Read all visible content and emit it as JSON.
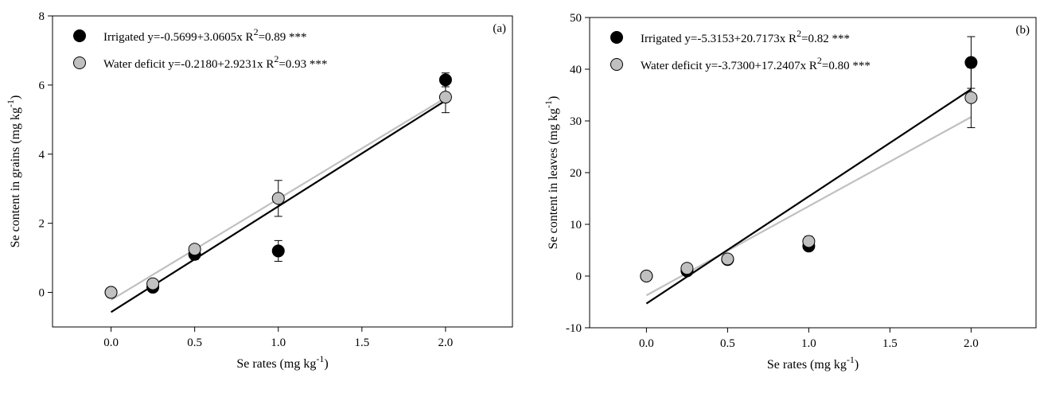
{
  "chart_data": [
    {
      "type": "scatter",
      "panel_label": "(a)",
      "xlabel": "Se rates (mg kg",
      "xlabel_sup": "-1",
      "xlabel_end": ")",
      "ylabel": "Se content in grains (mg kg",
      "ylabel_sup": "-1",
      "ylabel_end": ")",
      "xlim": [
        -0.35,
        2.4
      ],
      "ylim": [
        -1,
        8
      ],
      "xticks": [
        0.0,
        0.5,
        1.0,
        1.5,
        2.0
      ],
      "xtick_labels": [
        "0.0",
        "0.5",
        "1.0",
        "1.5",
        "2.0"
      ],
      "yticks": [
        0,
        2,
        4,
        6,
        8
      ],
      "ytick_labels": [
        "0",
        "2",
        "4",
        "6",
        "8"
      ],
      "legend_position": "top-left",
      "series": [
        {
          "name": "Irrigated",
          "equation": "y=-0.5699+3.0605x R",
          "r2_sup": "2",
          "r2_rest": "=0.89 ***",
          "color": "#000000",
          "line_color": "#000000",
          "x": [
            0.0,
            0.25,
            0.5,
            1.0,
            2.0
          ],
          "y": [
            0.0,
            0.15,
            1.1,
            1.2,
            6.15
          ],
          "err": [
            0,
            0.05,
            0.15,
            0.3,
            0.2
          ],
          "fit": {
            "intercept": -0.5699,
            "slope": 3.0605,
            "x_range": [
              0.0,
              2.0
            ]
          }
        },
        {
          "name": "Water deficit",
          "equation": "y=-0.2180+2.9231x R",
          "r2_sup": "2",
          "r2_rest": "=0.93 ***",
          "color": "#c0c0c0",
          "line_color": "#c0c0c0",
          "x": [
            0.0,
            0.25,
            0.5,
            1.0,
            2.0
          ],
          "y": [
            0.0,
            0.25,
            1.25,
            2.72,
            5.65
          ],
          "err": [
            0,
            0.05,
            0.1,
            0.52,
            0.45
          ],
          "fit": {
            "intercept": -0.218,
            "slope": 2.9231,
            "x_range": [
              0.0,
              2.0
            ]
          }
        }
      ]
    },
    {
      "type": "scatter",
      "panel_label": "(b)",
      "xlabel": "Se rates (mg kg",
      "xlabel_sup": "-1",
      "xlabel_end": ")",
      "ylabel": "Se content in leaves (mg kg",
      "ylabel_sup": "-1",
      "ylabel_end": ")",
      "xlim": [
        -0.35,
        2.4
      ],
      "ylim": [
        -10,
        50
      ],
      "xticks": [
        0.0,
        0.5,
        1.0,
        1.5,
        2.0
      ],
      "xtick_labels": [
        "0.0",
        "0.5",
        "1.0",
        "1.5",
        "2.0"
      ],
      "yticks": [
        -10,
        0,
        10,
        20,
        30,
        40,
        50
      ],
      "ytick_labels": [
        "-10",
        "0",
        "10",
        "20",
        "30",
        "40",
        "50"
      ],
      "legend_position": "top-left",
      "series": [
        {
          "name": "Irrigated",
          "equation": "y=-5.3153+20.7173x R",
          "r2_sup": "2",
          "r2_rest": "=0.82 ***",
          "color": "#000000",
          "line_color": "#000000",
          "x": [
            0.0,
            0.25,
            0.5,
            1.0,
            2.0
          ],
          "y": [
            0.0,
            1.0,
            3.2,
            5.8,
            41.3
          ],
          "err": [
            0,
            0.3,
            0.4,
            0.8,
            5.0
          ],
          "fit": {
            "intercept": -5.3153,
            "slope": 20.7173,
            "x_range": [
              0.0,
              2.0
            ]
          }
        },
        {
          "name": "Water deficit",
          "equation": "y=-3.7300+17.2407x R",
          "r2_sup": "2",
          "r2_rest": "=0.80 ***",
          "color": "#c0c0c0",
          "line_color": "#c0c0c0",
          "x": [
            0.0,
            0.25,
            0.5,
            1.0,
            2.0
          ],
          "y": [
            0.0,
            1.5,
            3.3,
            6.7,
            34.5
          ],
          "err": [
            0,
            0.3,
            0.4,
            1.0,
            5.8
          ],
          "fit": {
            "intercept": -3.73,
            "slope": 17.2407,
            "x_range": [
              0.0,
              2.0
            ]
          }
        }
      ]
    }
  ]
}
